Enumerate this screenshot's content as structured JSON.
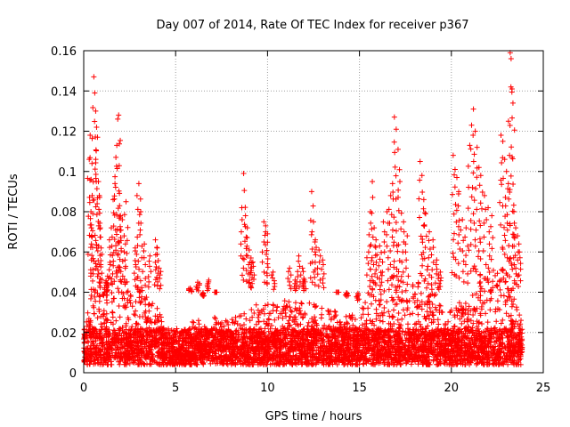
{
  "chart_data": {
    "type": "scatter",
    "title": "Day 007 of 2014, Rate Of TEC Index for receiver p367",
    "xlabel": "GPS time / hours",
    "ylabel": "ROTI / TECUs",
    "xlim": [
      0,
      25
    ],
    "ylim": [
      0,
      0.16
    ],
    "xticks": [
      0,
      5,
      10,
      15,
      20,
      25
    ],
    "yticks": [
      0,
      0.02,
      0.04,
      0.06,
      0.08,
      0.1,
      0.12,
      0.14,
      0.16
    ],
    "xtick_labels": [
      "0",
      "5",
      "10",
      "15",
      "20",
      "25"
    ],
    "ytick_labels": [
      "0",
      "0.02",
      "0.04",
      "0.06",
      "0.08",
      "0.1",
      "0.12",
      "0.14",
      "0.16"
    ],
    "grid": true,
    "marker": "+",
    "marker_color": "#ff0000",
    "series": [
      {
        "name": "ROTI",
        "description": "dense scatter of ROTI values from all satellites, time range 0 to ~23.9 h; bulk 0.005-0.035 TECU/min",
        "points": [
          [
            0.3,
            0.106
          ],
          [
            0.35,
            0.118
          ],
          [
            0.4,
            0.096
          ],
          [
            0.45,
            0.104
          ],
          [
            0.5,
            0.079
          ],
          [
            0.55,
            0.147
          ],
          [
            0.6,
            0.139
          ],
          [
            0.65,
            0.13
          ],
          [
            0.7,
            0.122
          ],
          [
            0.75,
            0.117
          ],
          [
            0.8,
            0.095
          ],
          [
            0.85,
            0.088
          ],
          [
            0.9,
            0.072
          ],
          [
            0.95,
            0.062
          ],
          [
            1.2,
            0.045
          ],
          [
            1.3,
            0.048
          ],
          [
            1.4,
            0.066
          ],
          [
            1.5,
            0.072
          ],
          [
            1.6,
            0.086
          ],
          [
            1.7,
            0.094
          ],
          [
            1.75,
            0.107
          ],
          [
            1.8,
            0.113
          ],
          [
            1.85,
            0.126
          ],
          [
            1.9,
            0.128
          ],
          [
            1.95,
            0.083
          ],
          [
            2.0,
            0.078
          ],
          [
            2.1,
            0.076
          ],
          [
            2.2,
            0.068
          ],
          [
            2.3,
            0.085
          ],
          [
            2.8,
            0.062
          ],
          [
            2.9,
            0.088
          ],
          [
            3.0,
            0.094
          ],
          [
            3.1,
            0.08
          ],
          [
            3.3,
            0.064
          ],
          [
            3.6,
            0.058
          ],
          [
            3.9,
            0.066
          ],
          [
            4.0,
            0.062
          ],
          [
            4.1,
            0.052
          ],
          [
            5.8,
            0.042
          ],
          [
            6.2,
            0.045
          ],
          [
            6.5,
            0.038
          ],
          [
            6.8,
            0.046
          ],
          [
            7.2,
            0.04
          ],
          [
            8.6,
            0.082
          ],
          [
            8.7,
            0.099
          ],
          [
            8.8,
            0.078
          ],
          [
            8.9,
            0.072
          ],
          [
            9.0,
            0.061
          ],
          [
            9.1,
            0.057
          ],
          [
            9.2,
            0.055
          ],
          [
            9.8,
            0.075
          ],
          [
            9.9,
            0.073
          ],
          [
            10.0,
            0.069
          ],
          [
            10.3,
            0.05
          ],
          [
            11.2,
            0.052
          ],
          [
            11.5,
            0.046
          ],
          [
            11.7,
            0.058
          ],
          [
            11.9,
            0.052
          ],
          [
            12.0,
            0.046
          ],
          [
            12.4,
            0.09
          ],
          [
            12.5,
            0.075
          ],
          [
            12.6,
            0.066
          ],
          [
            12.8,
            0.061
          ],
          [
            13.0,
            0.056
          ],
          [
            13.8,
            0.04
          ],
          [
            14.3,
            0.038
          ],
          [
            14.9,
            0.036
          ],
          [
            15.5,
            0.06
          ],
          [
            15.6,
            0.08
          ],
          [
            15.7,
            0.095
          ],
          [
            15.8,
            0.072
          ],
          [
            15.9,
            0.066
          ],
          [
            16.1,
            0.063
          ],
          [
            16.3,
            0.075
          ],
          [
            16.5,
            0.08
          ],
          [
            16.7,
            0.088
          ],
          [
            16.8,
            0.094
          ],
          [
            16.9,
            0.127
          ],
          [
            17.0,
            0.121
          ],
          [
            17.1,
            0.111
          ],
          [
            17.2,
            0.095
          ],
          [
            17.4,
            0.075
          ],
          [
            17.6,
            0.068
          ],
          [
            18.3,
            0.105
          ],
          [
            18.4,
            0.098
          ],
          [
            18.5,
            0.086
          ],
          [
            18.6,
            0.079
          ],
          [
            18.8,
            0.07
          ],
          [
            19.0,
            0.066
          ],
          [
            19.2,
            0.056
          ],
          [
            19.4,
            0.05
          ],
          [
            20.1,
            0.108
          ],
          [
            20.2,
            0.101
          ],
          [
            20.3,
            0.097
          ],
          [
            20.4,
            0.09
          ],
          [
            20.6,
            0.076
          ],
          [
            20.8,
            0.072
          ],
          [
            21.0,
            0.113
          ],
          [
            21.1,
            0.123
          ],
          [
            21.2,
            0.131
          ],
          [
            21.3,
            0.12
          ],
          [
            21.4,
            0.112
          ],
          [
            21.5,
            0.102
          ],
          [
            21.6,
            0.098
          ],
          [
            21.8,
            0.088
          ],
          [
            22.0,
            0.082
          ],
          [
            22.2,
            0.078
          ],
          [
            22.7,
            0.118
          ],
          [
            22.8,
            0.115
          ],
          [
            22.9,
            0.106
          ],
          [
            23.0,
            0.1
          ],
          [
            23.1,
            0.094
          ],
          [
            23.2,
            0.159
          ],
          [
            23.25,
            0.156
          ],
          [
            23.3,
            0.141
          ],
          [
            23.35,
            0.134
          ],
          [
            23.4,
            0.08
          ],
          [
            23.5,
            0.072
          ],
          [
            23.6,
            0.068
          ],
          [
            23.7,
            0.06
          ]
        ]
      }
    ]
  }
}
